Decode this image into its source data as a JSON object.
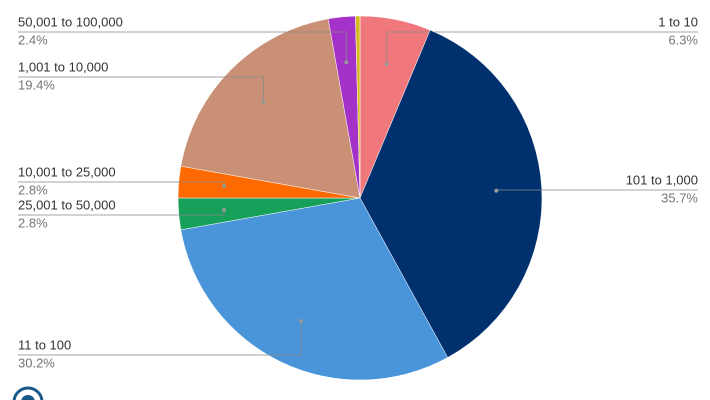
{
  "chart_data": {
    "type": "pie",
    "categories": [
      "1 to 10",
      "101 to 1,000",
      "11 to 100",
      "25,001 to 50,000",
      "10,001 to 25,000",
      "1,001 to 10,000",
      "50,001 to 100,000",
      null
    ],
    "values": [
      6.3,
      35.7,
      30.2,
      2.8,
      2.8,
      19.4,
      2.4,
      0.4
    ],
    "value_labels": [
      "6.3%",
      "35.7%",
      "30.2%",
      "2.8%",
      "2.8%",
      "19.4%",
      "2.4%",
      null
    ],
    "colors": [
      "#f0787d",
      "#01306f",
      "#4a94da",
      "#16a05a",
      "#ff6a00",
      "#c99075",
      "#a431c8",
      "#d6b822"
    ]
  }
}
